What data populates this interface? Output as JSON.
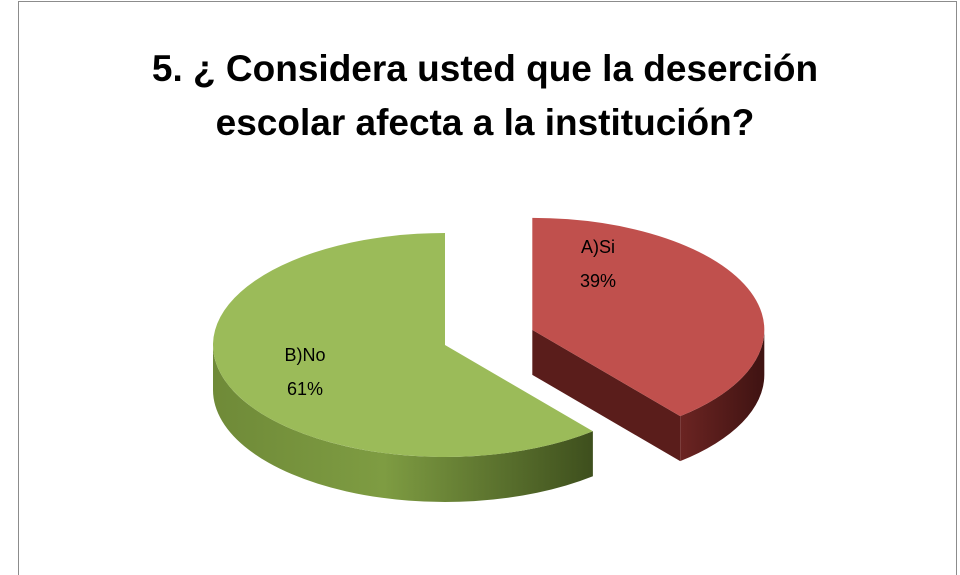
{
  "chart_data": {
    "type": "pie",
    "title": "5. ¿ Considera usted que la deserción escolar afecta a la institución?",
    "categories": [
      "A)Si",
      "B)No"
    ],
    "values": [
      39,
      61
    ],
    "value_labels": [
      "39%",
      "61%"
    ],
    "colors": [
      "#c0504d",
      "#9bbb59"
    ],
    "explode": [
      true,
      false
    ],
    "three_d": true
  }
}
